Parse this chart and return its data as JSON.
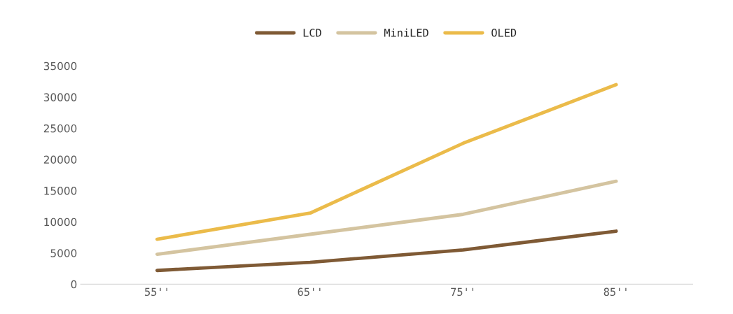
{
  "chart_data": {
    "type": "line",
    "categories": [
      "55''",
      "65''",
      "75''",
      "85''"
    ],
    "series": [
      {
        "name": "LCD",
        "color": "#7f5a35",
        "values": [
          2200,
          3500,
          5500,
          8500
        ]
      },
      {
        "name": "MiniLED",
        "color": "#d4c4a0",
        "values": [
          4800,
          8000,
          11200,
          16500
        ]
      },
      {
        "name": "OLED",
        "color": "#ebbb4a",
        "values": [
          7200,
          11400,
          22600,
          32000
        ]
      }
    ],
    "ylim": [
      0,
      35000
    ],
    "yticks": [
      0,
      5000,
      10000,
      15000,
      20000,
      25000,
      30000,
      35000
    ],
    "grid": false,
    "legend": "top",
    "marker": "none",
    "line_style": "solid"
  }
}
